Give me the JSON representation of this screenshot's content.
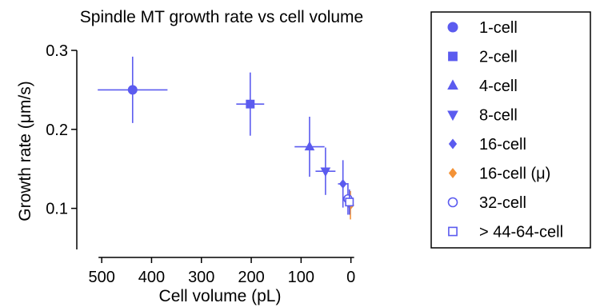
{
  "chart_data": {
    "type": "scatter",
    "title": "Spindle MT growth rate vs cell volume",
    "xlabel": "Cell volume (pL)",
    "ylabel": "Growth rate (μm/s)",
    "x_reversed": true,
    "xlim": [
      550,
      -15
    ],
    "ylim": [
      0.048,
      0.3
    ],
    "xticks": [
      500,
      400,
      300,
      200,
      100,
      0
    ],
    "yticks": [
      0.1,
      0.2,
      0.3
    ],
    "ytick_labels": [
      "0.1",
      "0.2",
      "0.3"
    ],
    "grid": false,
    "legend_position": "right",
    "series": [
      {
        "name": "1-cell",
        "marker": "circle",
        "color": "#5b5bef",
        "points": [
          {
            "x": 438,
            "y": 0.25,
            "xerr": 70,
            "yerr": 0.042
          }
        ]
      },
      {
        "name": "2-cell",
        "marker": "square",
        "color": "#5b5bef",
        "points": [
          {
            "x": 202,
            "y": 0.232,
            "xerr": 28,
            "yerr": 0.04
          }
        ]
      },
      {
        "name": "4-cell",
        "marker": "triangle-up",
        "color": "#5b5bef",
        "points": [
          {
            "x": 83,
            "y": 0.178,
            "xerr": 30,
            "yerr": 0.038
          }
        ]
      },
      {
        "name": "8-cell",
        "marker": "triangle-down",
        "color": "#5b5bef",
        "points": [
          {
            "x": 51,
            "y": 0.147,
            "xerr": 20,
            "yerr": 0.03
          }
        ]
      },
      {
        "name": "16-cell",
        "marker": "diamond",
        "color": "#5b5bef",
        "points": [
          {
            "x": 16,
            "y": 0.131,
            "xerr": 10,
            "yerr": 0.03
          }
        ]
      },
      {
        "name": "16-cell (μ)",
        "marker": "diamond",
        "color": "#f39237",
        "points": [
          {
            "x": 1,
            "y": 0.104,
            "xerr": 2,
            "yerr": 0.018
          }
        ]
      },
      {
        "name": "32-cell",
        "marker": "circle-open",
        "color": "#5b5bef",
        "points": [
          {
            "x": 6,
            "y": 0.112,
            "xerr": 5,
            "yerr": 0.02
          }
        ]
      },
      {
        "name": "> 44-64-cell",
        "marker": "square-open",
        "color": "#5b5bef",
        "points": [
          {
            "x": 3,
            "y": 0.108,
            "xerr": 3,
            "yerr": 0.016
          }
        ]
      }
    ]
  }
}
